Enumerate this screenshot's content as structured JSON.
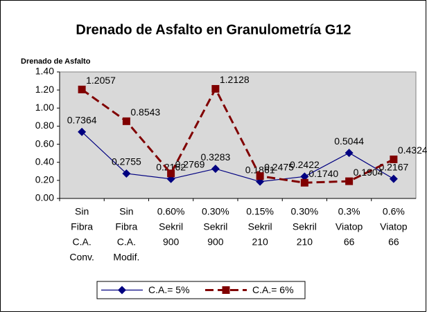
{
  "chart_data": {
    "type": "line",
    "title": "Drenado de Asfalto en Granulometría G12",
    "y_label": "Drenado de Asfalto",
    "categories": [
      [
        "Sin",
        "Fibra",
        "C.A.",
        "Conv."
      ],
      [
        "Sin",
        "Fibra",
        "C.A.",
        "Modif."
      ],
      [
        "0.60%",
        "Sekril",
        "900"
      ],
      [
        "0.30%",
        "Sekril",
        "900"
      ],
      [
        "0.15%",
        "Sekril",
        "210"
      ],
      [
        "0.30%",
        "Sekril",
        "210"
      ],
      [
        "0.3%",
        "Viatop",
        "66"
      ],
      [
        "0.6%",
        "Viatop",
        "66"
      ]
    ],
    "series": [
      {
        "name": "C.A.= 5%",
        "color": "#000080",
        "marker": "diamond",
        "dashed": false,
        "values": [
          0.7364,
          0.2755,
          0.2162,
          0.3283,
          0.1861,
          0.2422,
          0.5044,
          0.2167
        ],
        "value_labels": [
          "0.7364",
          "0.2755",
          "0.2162",
          "0.3283",
          "0.1861",
          "0.2422",
          "0.5044",
          "0.2167"
        ]
      },
      {
        "name": "C.A.= 6%",
        "color": "#800000",
        "marker": "square",
        "dashed": true,
        "values": [
          1.2057,
          0.8543,
          0.2769,
          1.2128,
          0.2475,
          0.174,
          0.1904,
          0.4324
        ],
        "value_labels": [
          "1.2057",
          "0.8543",
          "0.2769",
          "1.2128",
          "0.2475",
          "0.1740",
          "0.1904",
          "0.4324"
        ]
      }
    ],
    "ylim": [
      0,
      1.4
    ],
    "yticks": [
      {
        "value": 0,
        "label": "0.00"
      },
      {
        "value": 0.2,
        "label": "0.20"
      },
      {
        "value": 0.4,
        "label": "0.40"
      },
      {
        "value": 0.6,
        "label": "0.60"
      },
      {
        "value": 0.8,
        "label": "0.80"
      },
      {
        "value": 1,
        "label": "1.00"
      },
      {
        "value": 1.2,
        "label": "1.20"
      },
      {
        "value": 1.4,
        "label": "1.40"
      }
    ],
    "plot_background": "#d9d9d9"
  }
}
